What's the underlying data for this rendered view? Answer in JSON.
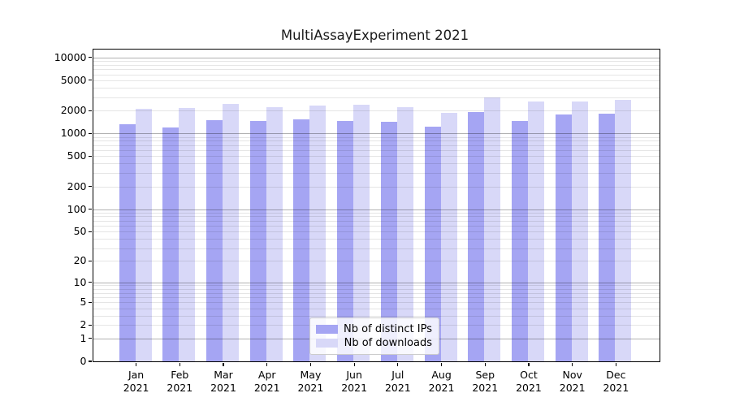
{
  "chart_data": {
    "type": "bar",
    "title": "MultiAssayExperiment 2021",
    "categories": [
      "Jan",
      "Feb",
      "Mar",
      "Apr",
      "May",
      "Jun",
      "Jul",
      "Aug",
      "Sep",
      "Oct",
      "Nov",
      "Dec"
    ],
    "year": "2021",
    "series": [
      {
        "name": "Nb of distinct IPs",
        "color": "#a5a5f3",
        "values": [
          1320,
          1190,
          1490,
          1450,
          1550,
          1460,
          1430,
          1220,
          1890,
          1460,
          1760,
          1800
        ]
      },
      {
        "name": "Nb of downloads",
        "color": "#d8d8f8",
        "values": [
          2100,
          2150,
          2440,
          2190,
          2320,
          2380,
          2200,
          1870,
          2950,
          2620,
          2660,
          2780
        ]
      }
    ],
    "yscale": "log1p",
    "ylim": [
      0,
      12700
    ],
    "y_ticks": [
      0,
      1,
      2,
      5,
      10,
      20,
      50,
      100,
      200,
      500,
      1000,
      2000,
      5000,
      10000
    ],
    "grid": "on",
    "legend_position": "bottom-center",
    "style": {
      "grid_major_color": "#b4b4b4",
      "grid_minor_color": "#e6e6e6",
      "frame_color": "#000000"
    }
  }
}
